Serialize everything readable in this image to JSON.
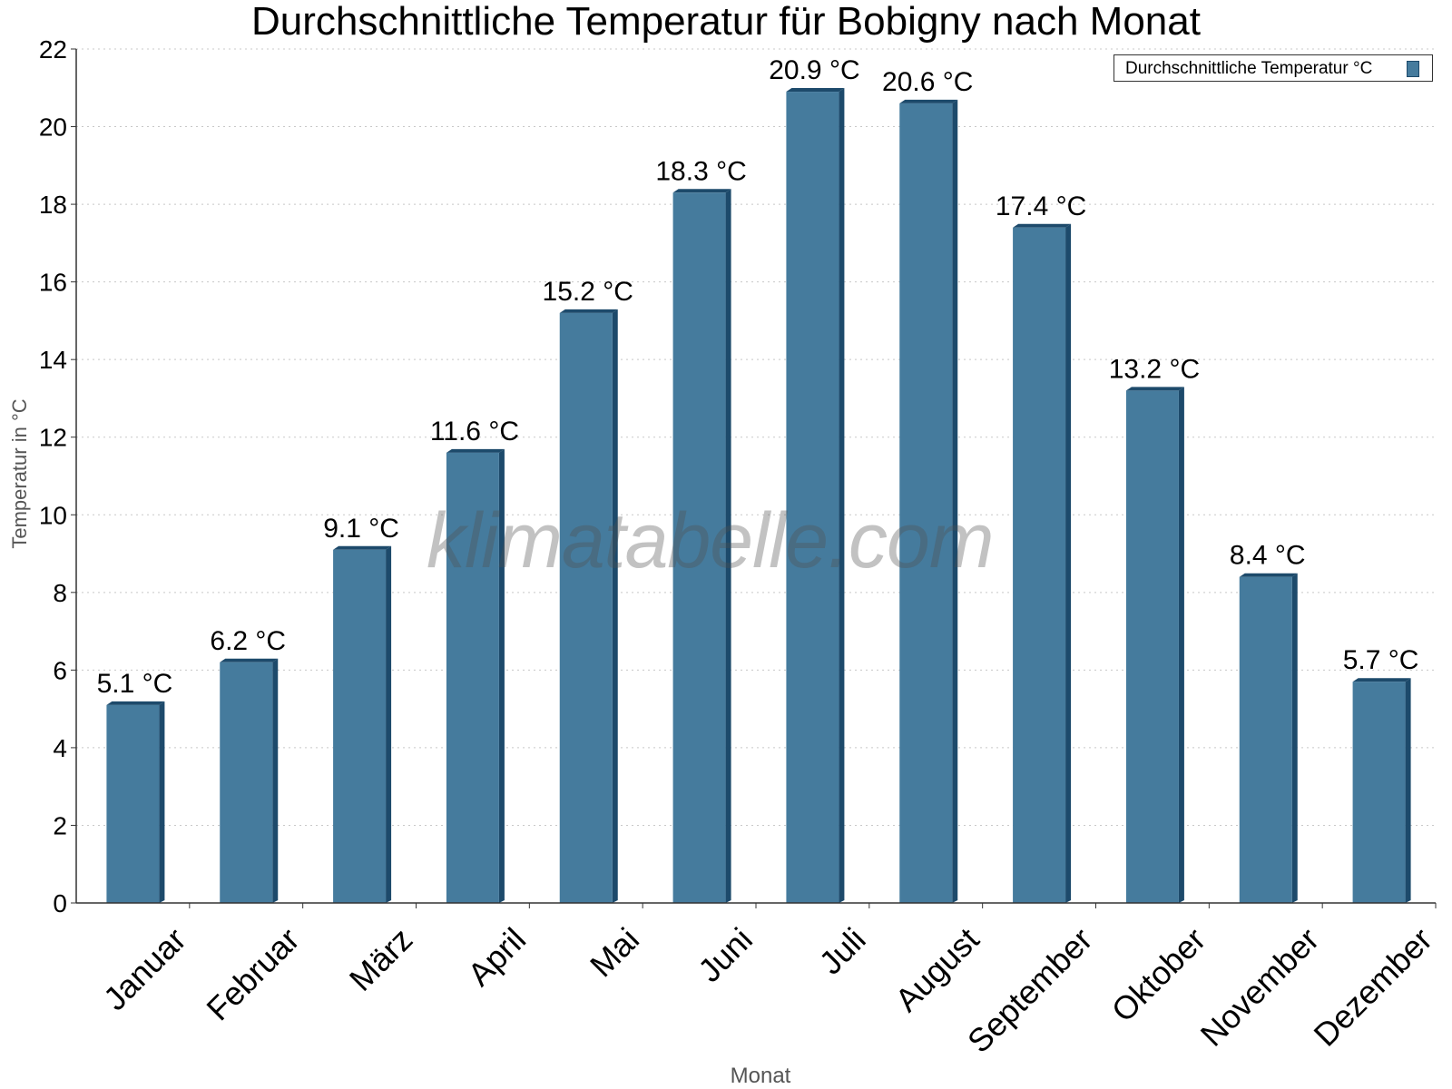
{
  "chart_data": {
    "type": "bar",
    "title": "Durchschnittliche Temperatur für Bobigny nach Monat",
    "xlabel": "Monat",
    "ylabel": "Temperatur in °C",
    "ylim": [
      0,
      22
    ],
    "yticks": [
      0,
      2,
      4,
      6,
      8,
      10,
      12,
      14,
      16,
      18,
      20,
      22
    ],
    "grid": true,
    "legend_position": "top-right",
    "categories": [
      "Januar",
      "Februar",
      "März",
      "April",
      "Mai",
      "Juni",
      "Juli",
      "August",
      "September",
      "Oktober",
      "November",
      "Dezember"
    ],
    "series": [
      {
        "name": "Durchschnittliche Temperatur °C",
        "values": [
          5.1,
          6.2,
          9.1,
          11.6,
          15.2,
          18.3,
          20.9,
          20.6,
          17.4,
          13.2,
          8.4,
          5.7
        ],
        "data_labels": [
          "5.1 °C",
          "6.2 °C",
          "9.1 °C",
          "11.6 °C",
          "15.2 °C",
          "18.3 °C",
          "20.9 °C",
          "20.6 °C",
          "17.4 °C",
          "13.2 °C",
          "8.4 °C",
          "5.7 °C"
        ]
      }
    ],
    "colors": {
      "bar_face": "#457b9d",
      "bar_side": "#1d4a6b",
      "grid": "#c8c8c8",
      "axis": "#333333"
    }
  },
  "watermark": "klimatabelle.com"
}
